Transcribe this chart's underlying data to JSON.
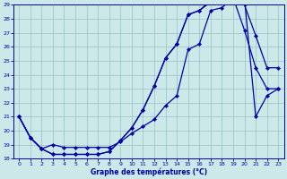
{
  "title": "Graphe des températures (°C)",
  "bg_color": "#cce8e8",
  "line_color": "#0000aa",
  "xlim": [
    -0.5,
    23.5
  ],
  "ylim": [
    18,
    29
  ],
  "xticks": [
    0,
    1,
    2,
    3,
    4,
    5,
    6,
    7,
    8,
    9,
    10,
    11,
    12,
    13,
    14,
    15,
    16,
    17,
    18,
    19,
    20,
    21,
    22,
    23
  ],
  "yticks": [
    18,
    19,
    20,
    21,
    22,
    23,
    24,
    25,
    26,
    27,
    28,
    29
  ],
  "line1_x": [
    0,
    1,
    2,
    3,
    4,
    5,
    6,
    7,
    8,
    9,
    10,
    11,
    12,
    13,
    14,
    15,
    16,
    17,
    18,
    19,
    20,
    21,
    22,
    23
  ],
  "line1_y": [
    21.0,
    19.5,
    18.7,
    18.3,
    18.3,
    18.3,
    18.3,
    18.3,
    18.5,
    19.3,
    20.2,
    21.5,
    23.2,
    25.2,
    26.2,
    28.3,
    28.6,
    29.2,
    29.3,
    29.3,
    29.0,
    26.8,
    24.5,
    24.5
  ],
  "line2_x": [
    0,
    1,
    2,
    3,
    4,
    5,
    6,
    7,
    8,
    9,
    10,
    11,
    12,
    13,
    14,
    15,
    16,
    17,
    18,
    19,
    20,
    21,
    22,
    23
  ],
  "line2_y": [
    21.0,
    19.5,
    18.7,
    18.3,
    18.3,
    18.3,
    18.3,
    18.3,
    18.5,
    19.3,
    20.2,
    21.5,
    23.2,
    25.2,
    26.2,
    28.3,
    28.6,
    29.3,
    29.5,
    29.5,
    27.2,
    24.5,
    23.0,
    23.0
  ],
  "line3_x": [
    0,
    1,
    2,
    3,
    4,
    5,
    6,
    7,
    8,
    9,
    10,
    11,
    12,
    13,
    14,
    15,
    16,
    17,
    18,
    19,
    20,
    21,
    22,
    23
  ],
  "line3_y": [
    21.0,
    19.5,
    18.7,
    19.0,
    18.8,
    18.8,
    18.8,
    18.8,
    18.8,
    19.2,
    19.8,
    20.3,
    20.8,
    21.8,
    22.5,
    25.8,
    26.2,
    28.6,
    28.8,
    29.5,
    29.5,
    21.0,
    22.5,
    23.0
  ]
}
